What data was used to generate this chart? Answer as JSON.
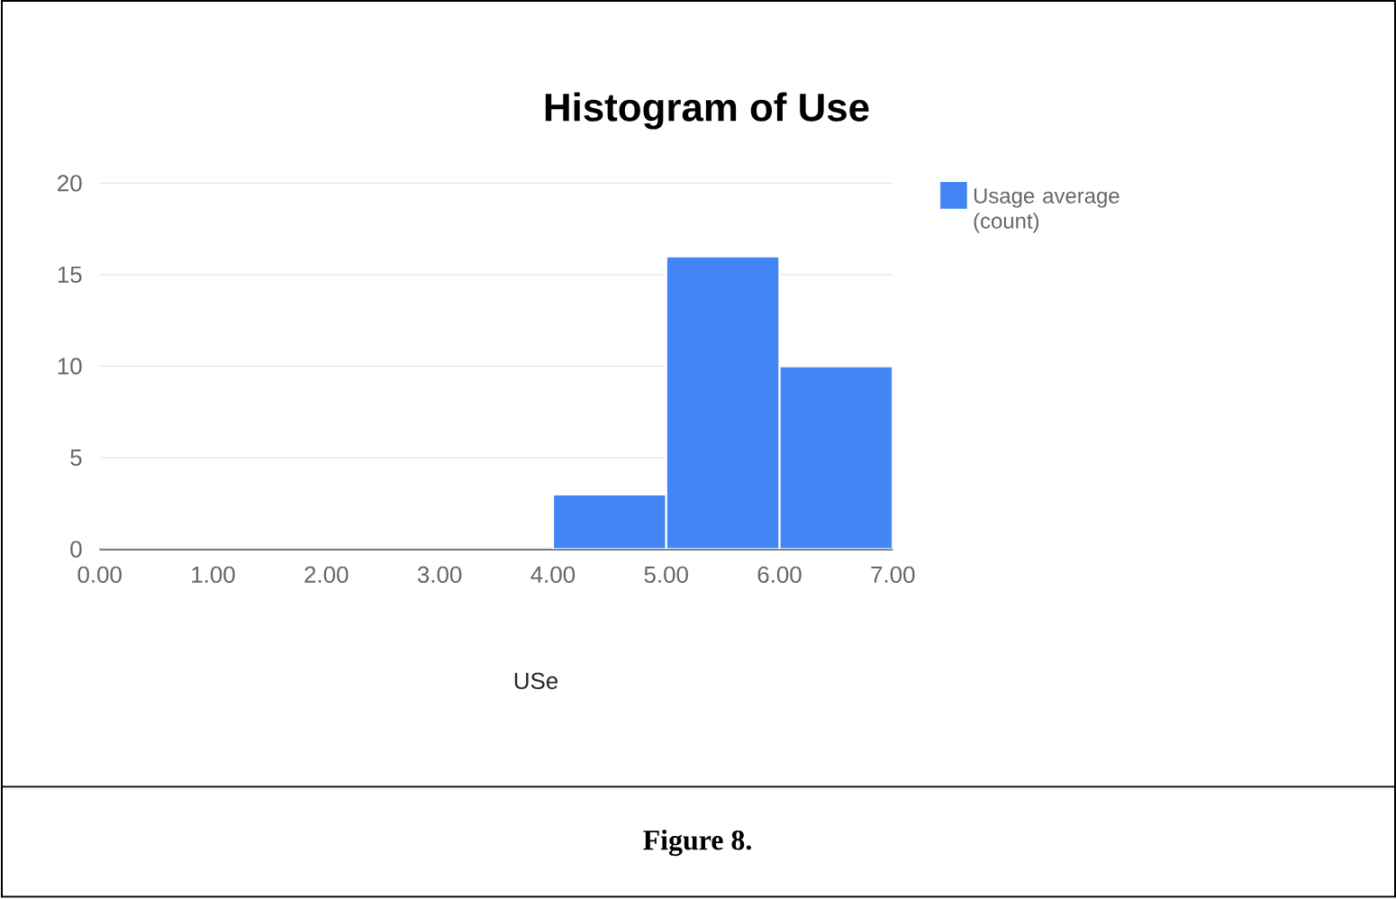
{
  "chart_data": {
    "type": "histogram",
    "title": "Histogram of Use",
    "xlabel": "USe",
    "bins": [
      0,
      1,
      2,
      3,
      4,
      5,
      6,
      7
    ],
    "series": [
      {
        "name": "Usage average (count)",
        "color": "#4285f4",
        "values": [
          0,
          0,
          0,
          0,
          3,
          16,
          10
        ]
      }
    ],
    "xlim": [
      0,
      7
    ],
    "xticks": [
      {
        "value": 0,
        "label": "0.00"
      },
      {
        "value": 1,
        "label": "1.00"
      },
      {
        "value": 2,
        "label": "2.00"
      },
      {
        "value": 3,
        "label": "3.00"
      },
      {
        "value": 4,
        "label": "4.00"
      },
      {
        "value": 5,
        "label": "5.00"
      },
      {
        "value": 6,
        "label": "6.00"
      },
      {
        "value": 7,
        "label": "7.00"
      }
    ],
    "ylim": [
      0,
      20
    ],
    "yticks": [
      0,
      5,
      10,
      15,
      20
    ],
    "grid": "y",
    "legend": "top right",
    "annotations": [
      "Figure 8."
    ]
  }
}
